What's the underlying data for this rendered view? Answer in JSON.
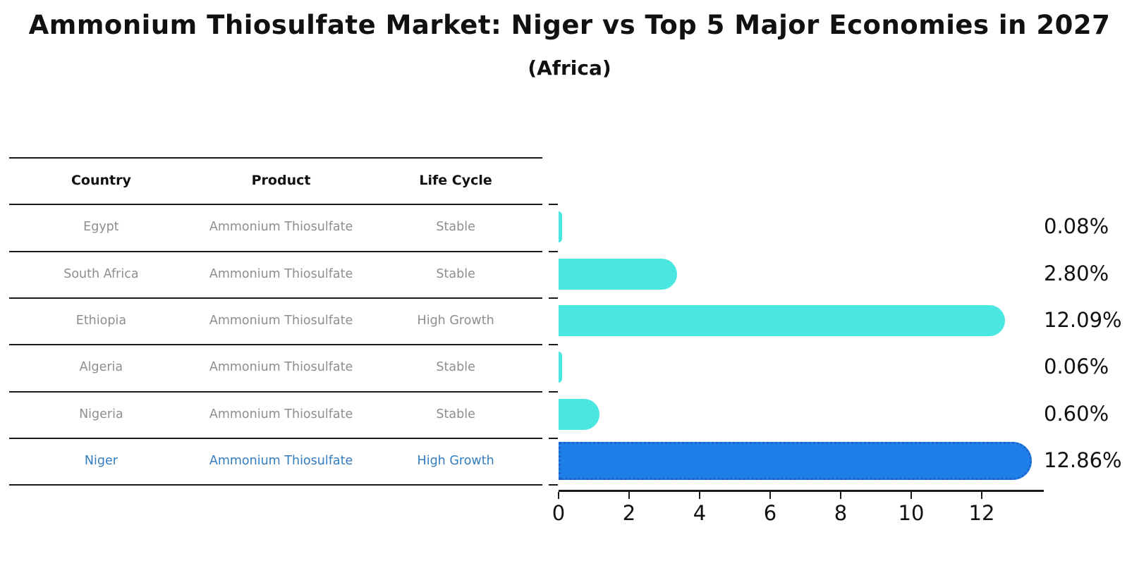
{
  "title": "Ammonium Thiosulfate Market: Niger vs Top 5 Major Economies in 2027",
  "subtitle": "(Africa)",
  "table": {
    "headers": [
      "Country",
      "Product",
      "Life Cycle"
    ],
    "rows": [
      {
        "country": "Egypt",
        "product": "Ammonium Thiosulfate",
        "life_cycle": "Stable",
        "highlight": false
      },
      {
        "country": "South Africa",
        "product": "Ammonium Thiosulfate",
        "life_cycle": "Stable",
        "highlight": false
      },
      {
        "country": "Ethiopia",
        "product": "Ammonium Thiosulfate",
        "life_cycle": "High Growth",
        "highlight": false
      },
      {
        "country": "Algeria",
        "product": "Ammonium Thiosulfate",
        "life_cycle": "Stable",
        "highlight": false
      },
      {
        "country": "Nigeria",
        "product": "Ammonium Thiosulfate",
        "life_cycle": "Stable",
        "highlight": false
      },
      {
        "country": "Niger",
        "product": "Ammonium Thiosulfate",
        "life_cycle": "High Growth",
        "highlight": true
      }
    ]
  },
  "chart_data": {
    "type": "bar",
    "orientation": "horizontal",
    "title": "Ammonium Thiosulfate Market: Niger vs Top 5 Major Economies in 2027",
    "subtitle": "(Africa)",
    "categories": [
      "Egypt",
      "South Africa",
      "Ethiopia",
      "Algeria",
      "Nigeria",
      "Niger"
    ],
    "values": [
      0.08,
      2.8,
      12.09,
      0.06,
      0.6,
      12.86
    ],
    "value_labels": [
      "0.08%",
      "2.80%",
      "12.09%",
      "0.06%",
      "0.60%",
      "12.86%"
    ],
    "x_ticks": [
      0,
      2,
      4,
      6,
      8,
      10,
      12
    ],
    "xlim": [
      0,
      13.6
    ],
    "xlabel": "",
    "ylabel": "",
    "grid": "off",
    "legend": "none",
    "highlight_index": 5
  },
  "colors": {
    "bar_default": "#4ae7e0",
    "bar_highlight": "#1f7fe8",
    "bar_highlight_border": "#1b63c9",
    "highlight_text": "#337dbe",
    "table_text": "#8e8e8e",
    "header_text": "#111111"
  }
}
